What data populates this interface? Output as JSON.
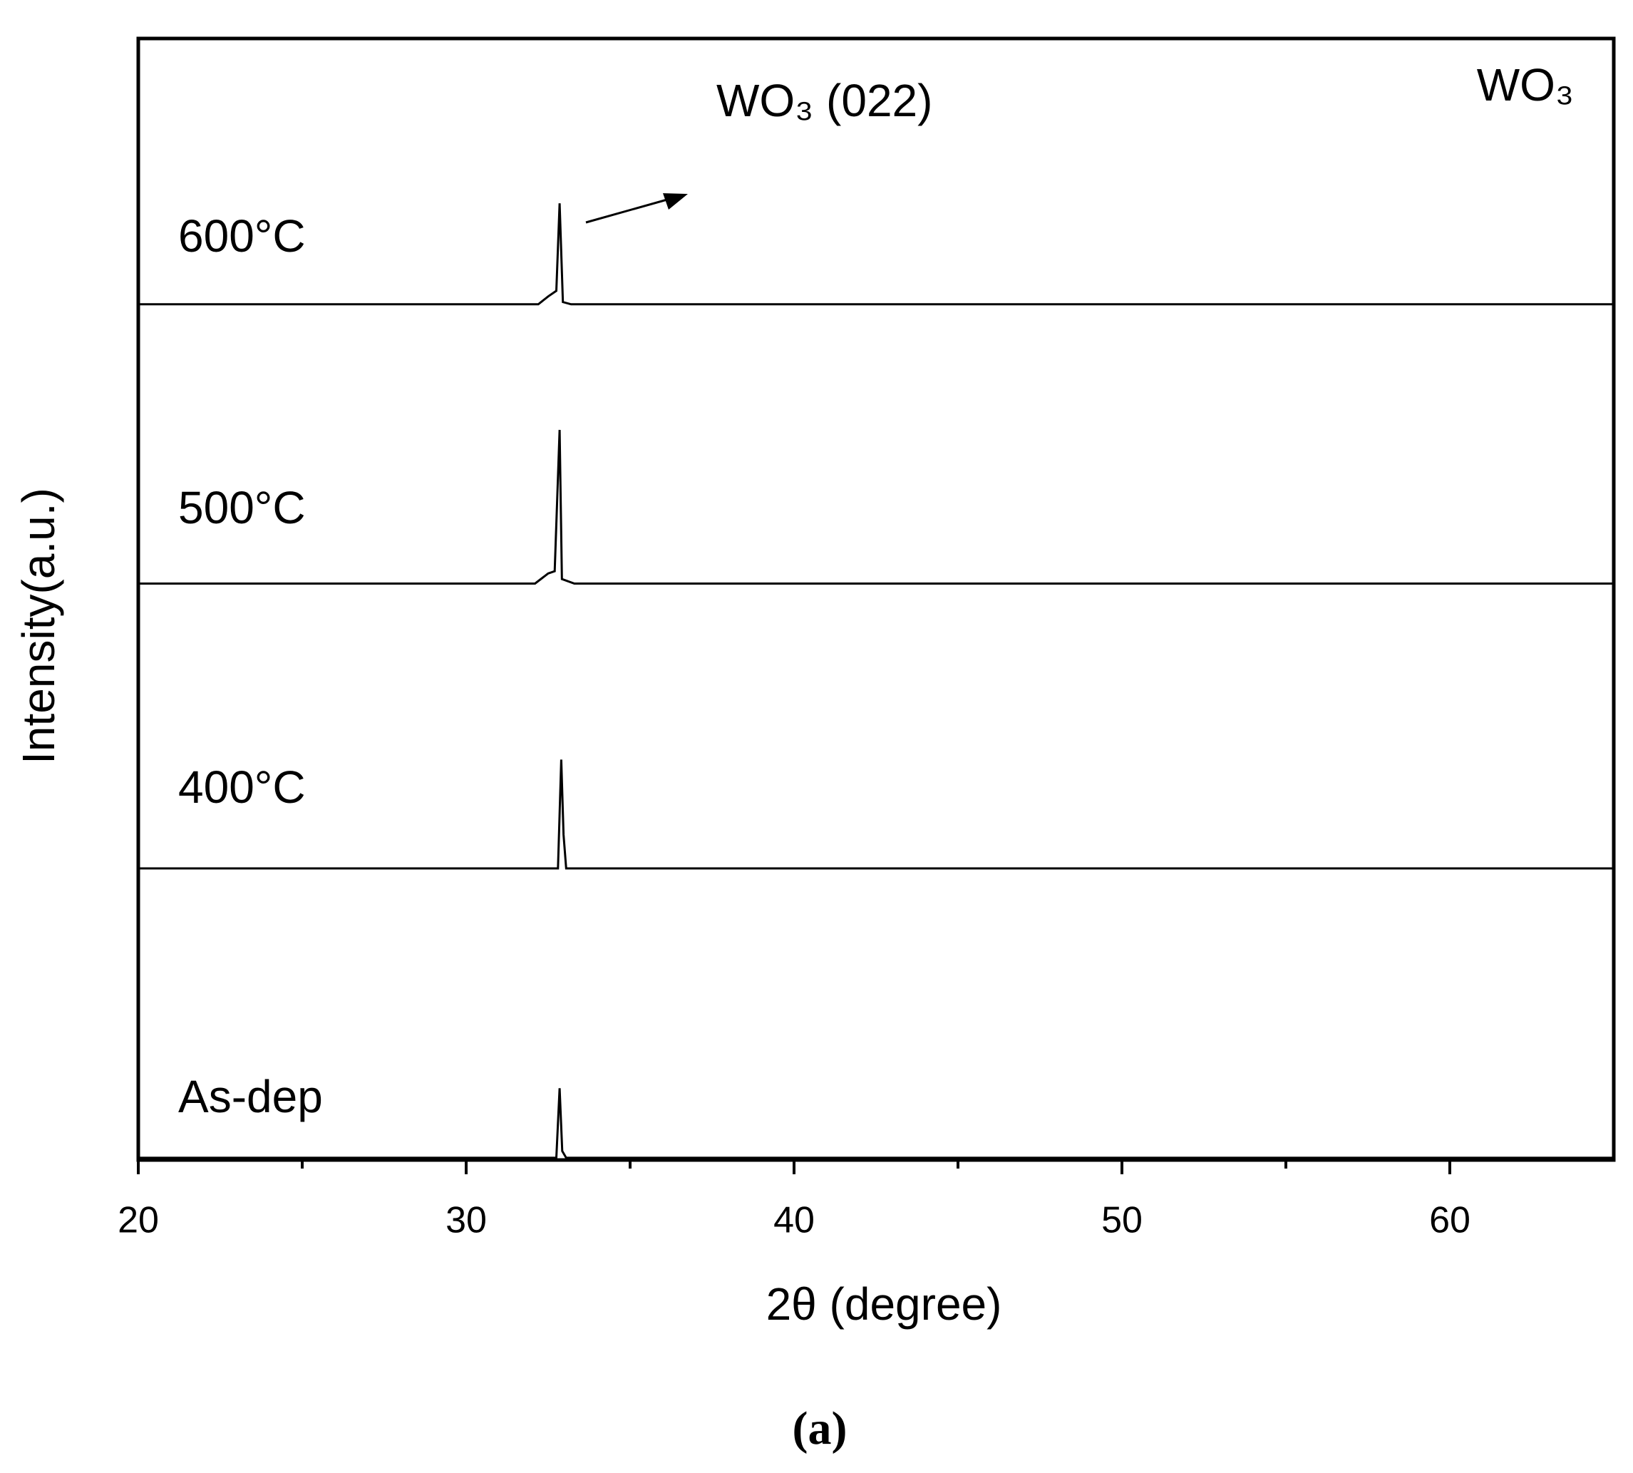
{
  "chart_data": {
    "type": "line",
    "xlabel": "2θ (degree)",
    "ylabel": "Intensity(a.u.)",
    "caption": "(a)",
    "annotations": [
      "WO₃ (022)",
      "WO₃"
    ],
    "xlim": [
      20,
      65
    ],
    "xticks": [
      20,
      30,
      40,
      50,
      60
    ],
    "xminor_ticks": [
      25,
      35,
      45,
      55
    ],
    "ylim": [
      0,
      100
    ],
    "series": [
      {
        "name": "600°C",
        "color": "#000000",
        "x": [
          20,
          32.2,
          32.5,
          32.75,
          32.85,
          32.95,
          33.2,
          65
        ],
        "values": [
          76.3,
          76.3,
          77,
          77.5,
          85.3,
          76.5,
          76.3,
          76.3
        ]
      },
      {
        "name": "500°C",
        "color": "#000000",
        "x": [
          20,
          32.1,
          32.5,
          32.7,
          32.85,
          32.92,
          33.3,
          65
        ],
        "values": [
          51.4,
          51.4,
          52.3,
          52.5,
          65.1,
          51.8,
          51.4,
          51.4
        ]
      },
      {
        "name": "400°C",
        "color": "#000000",
        "x": [
          20,
          32.8,
          32.9,
          32.97,
          33.05,
          65
        ],
        "values": [
          26,
          26,
          35.7,
          29,
          26,
          26
        ]
      },
      {
        "name": "As-dep",
        "color": "#000000",
        "x": [
          20,
          32.75,
          32.85,
          32.93,
          33.05,
          65
        ],
        "values": [
          0.2,
          0.2,
          6.4,
          0.8,
          0.2,
          0.2
        ]
      }
    ]
  }
}
